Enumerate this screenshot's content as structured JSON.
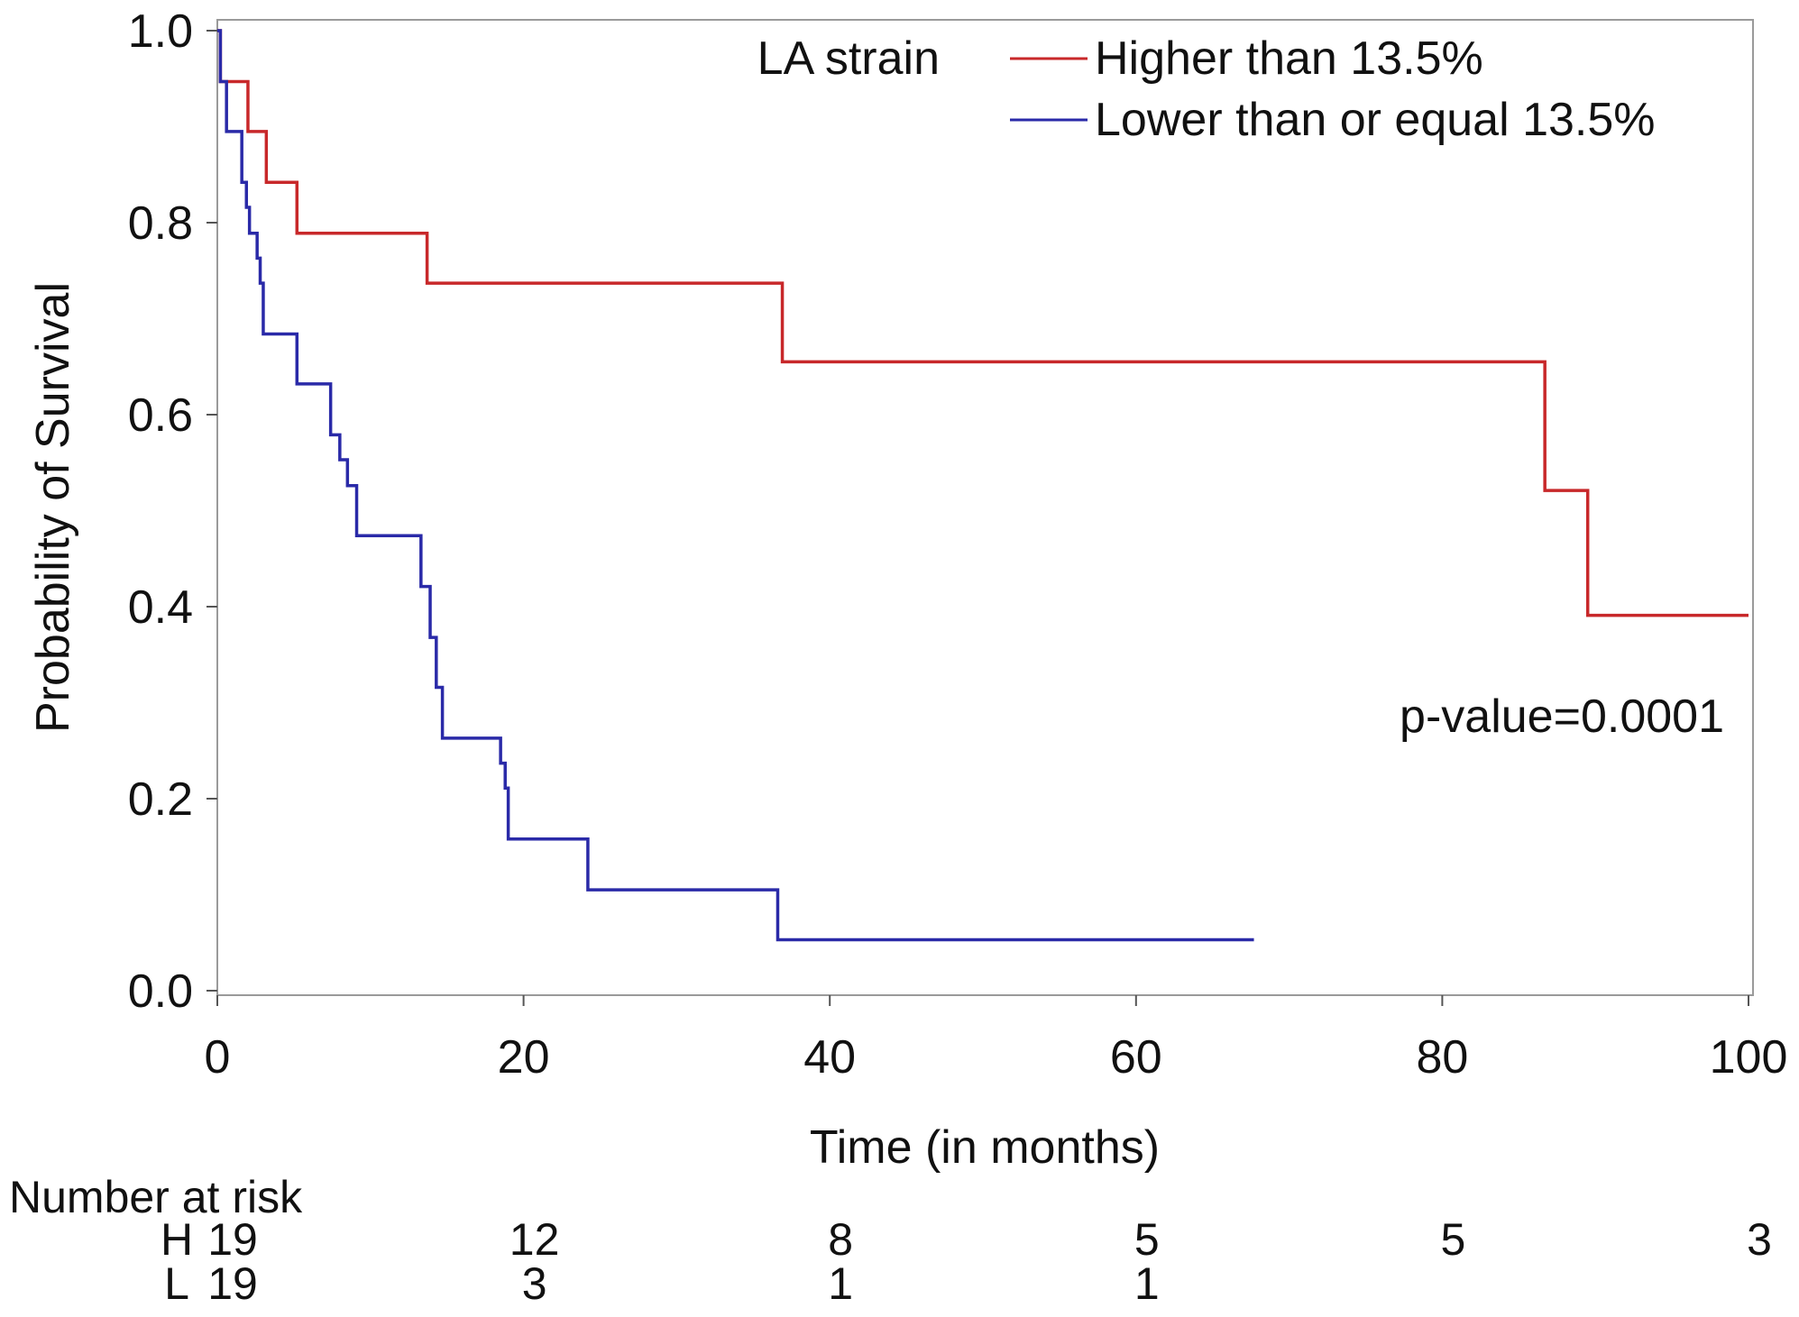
{
  "chart_data": {
    "type": "line",
    "subtype": "kaplan-meier",
    "title": "",
    "xlabel": "Time (in months)",
    "ylabel": "Probability of Survival",
    "xlim": [
      0,
      100
    ],
    "ylim": [
      0,
      1
    ],
    "xticks": [
      0,
      20,
      40,
      60,
      80,
      100
    ],
    "xtick_labels": [
      "0",
      "20",
      "40",
      "60",
      "80",
      "100"
    ],
    "yticks": [
      0,
      0.2,
      0.4,
      0.6,
      0.8,
      1.0
    ],
    "ytick_labels": [
      "0.0",
      "0.2",
      "0.4",
      "0.6",
      "0.8",
      "1.0"
    ],
    "grid": false,
    "legend": {
      "title": "LA strain",
      "position": "top-right"
    },
    "series": [
      {
        "name": "Higher than 13.5%",
        "color": "#c8282a",
        "x": [
          0,
          0.2,
          2,
          3.2,
          5.2,
          13.7,
          36.9,
          86.7,
          89.5,
          100
        ],
        "y": [
          1.0,
          0.947,
          0.895,
          0.842,
          0.789,
          0.737,
          0.655,
          0.521,
          0.391,
          0.391
        ]
      },
      {
        "name": "Lower than or equal 13.5%",
        "color": "#2a2aa8",
        "x": [
          0,
          0.2,
          0.6,
          1.6,
          1.9,
          2.1,
          2.6,
          2.8,
          3.0,
          5.2,
          7.4,
          8.0,
          8.5,
          9.1,
          13.3,
          13.9,
          14.3,
          14.7,
          18.5,
          18.8,
          19.0,
          24.2,
          36.6,
          67.7
        ],
        "y": [
          1.0,
          0.947,
          0.895,
          0.842,
          0.816,
          0.789,
          0.763,
          0.737,
          0.684,
          0.632,
          0.579,
          0.553,
          0.526,
          0.474,
          0.421,
          0.368,
          0.316,
          0.263,
          0.237,
          0.211,
          0.158,
          0.105,
          0.053,
          0.053
        ]
      }
    ],
    "annotations": [
      "p-value=0.0001"
    ],
    "risk_table": {
      "title": "Number at risk",
      "times": [
        0,
        20,
        40,
        60,
        80,
        100
      ],
      "rows": [
        {
          "label": "H",
          "values": [
            "19",
            "12",
            "8",
            "5",
            "5",
            "3"
          ]
        },
        {
          "label": "L",
          "values": [
            "19",
            "3",
            "1",
            "1",
            "",
            ""
          ]
        }
      ]
    }
  }
}
